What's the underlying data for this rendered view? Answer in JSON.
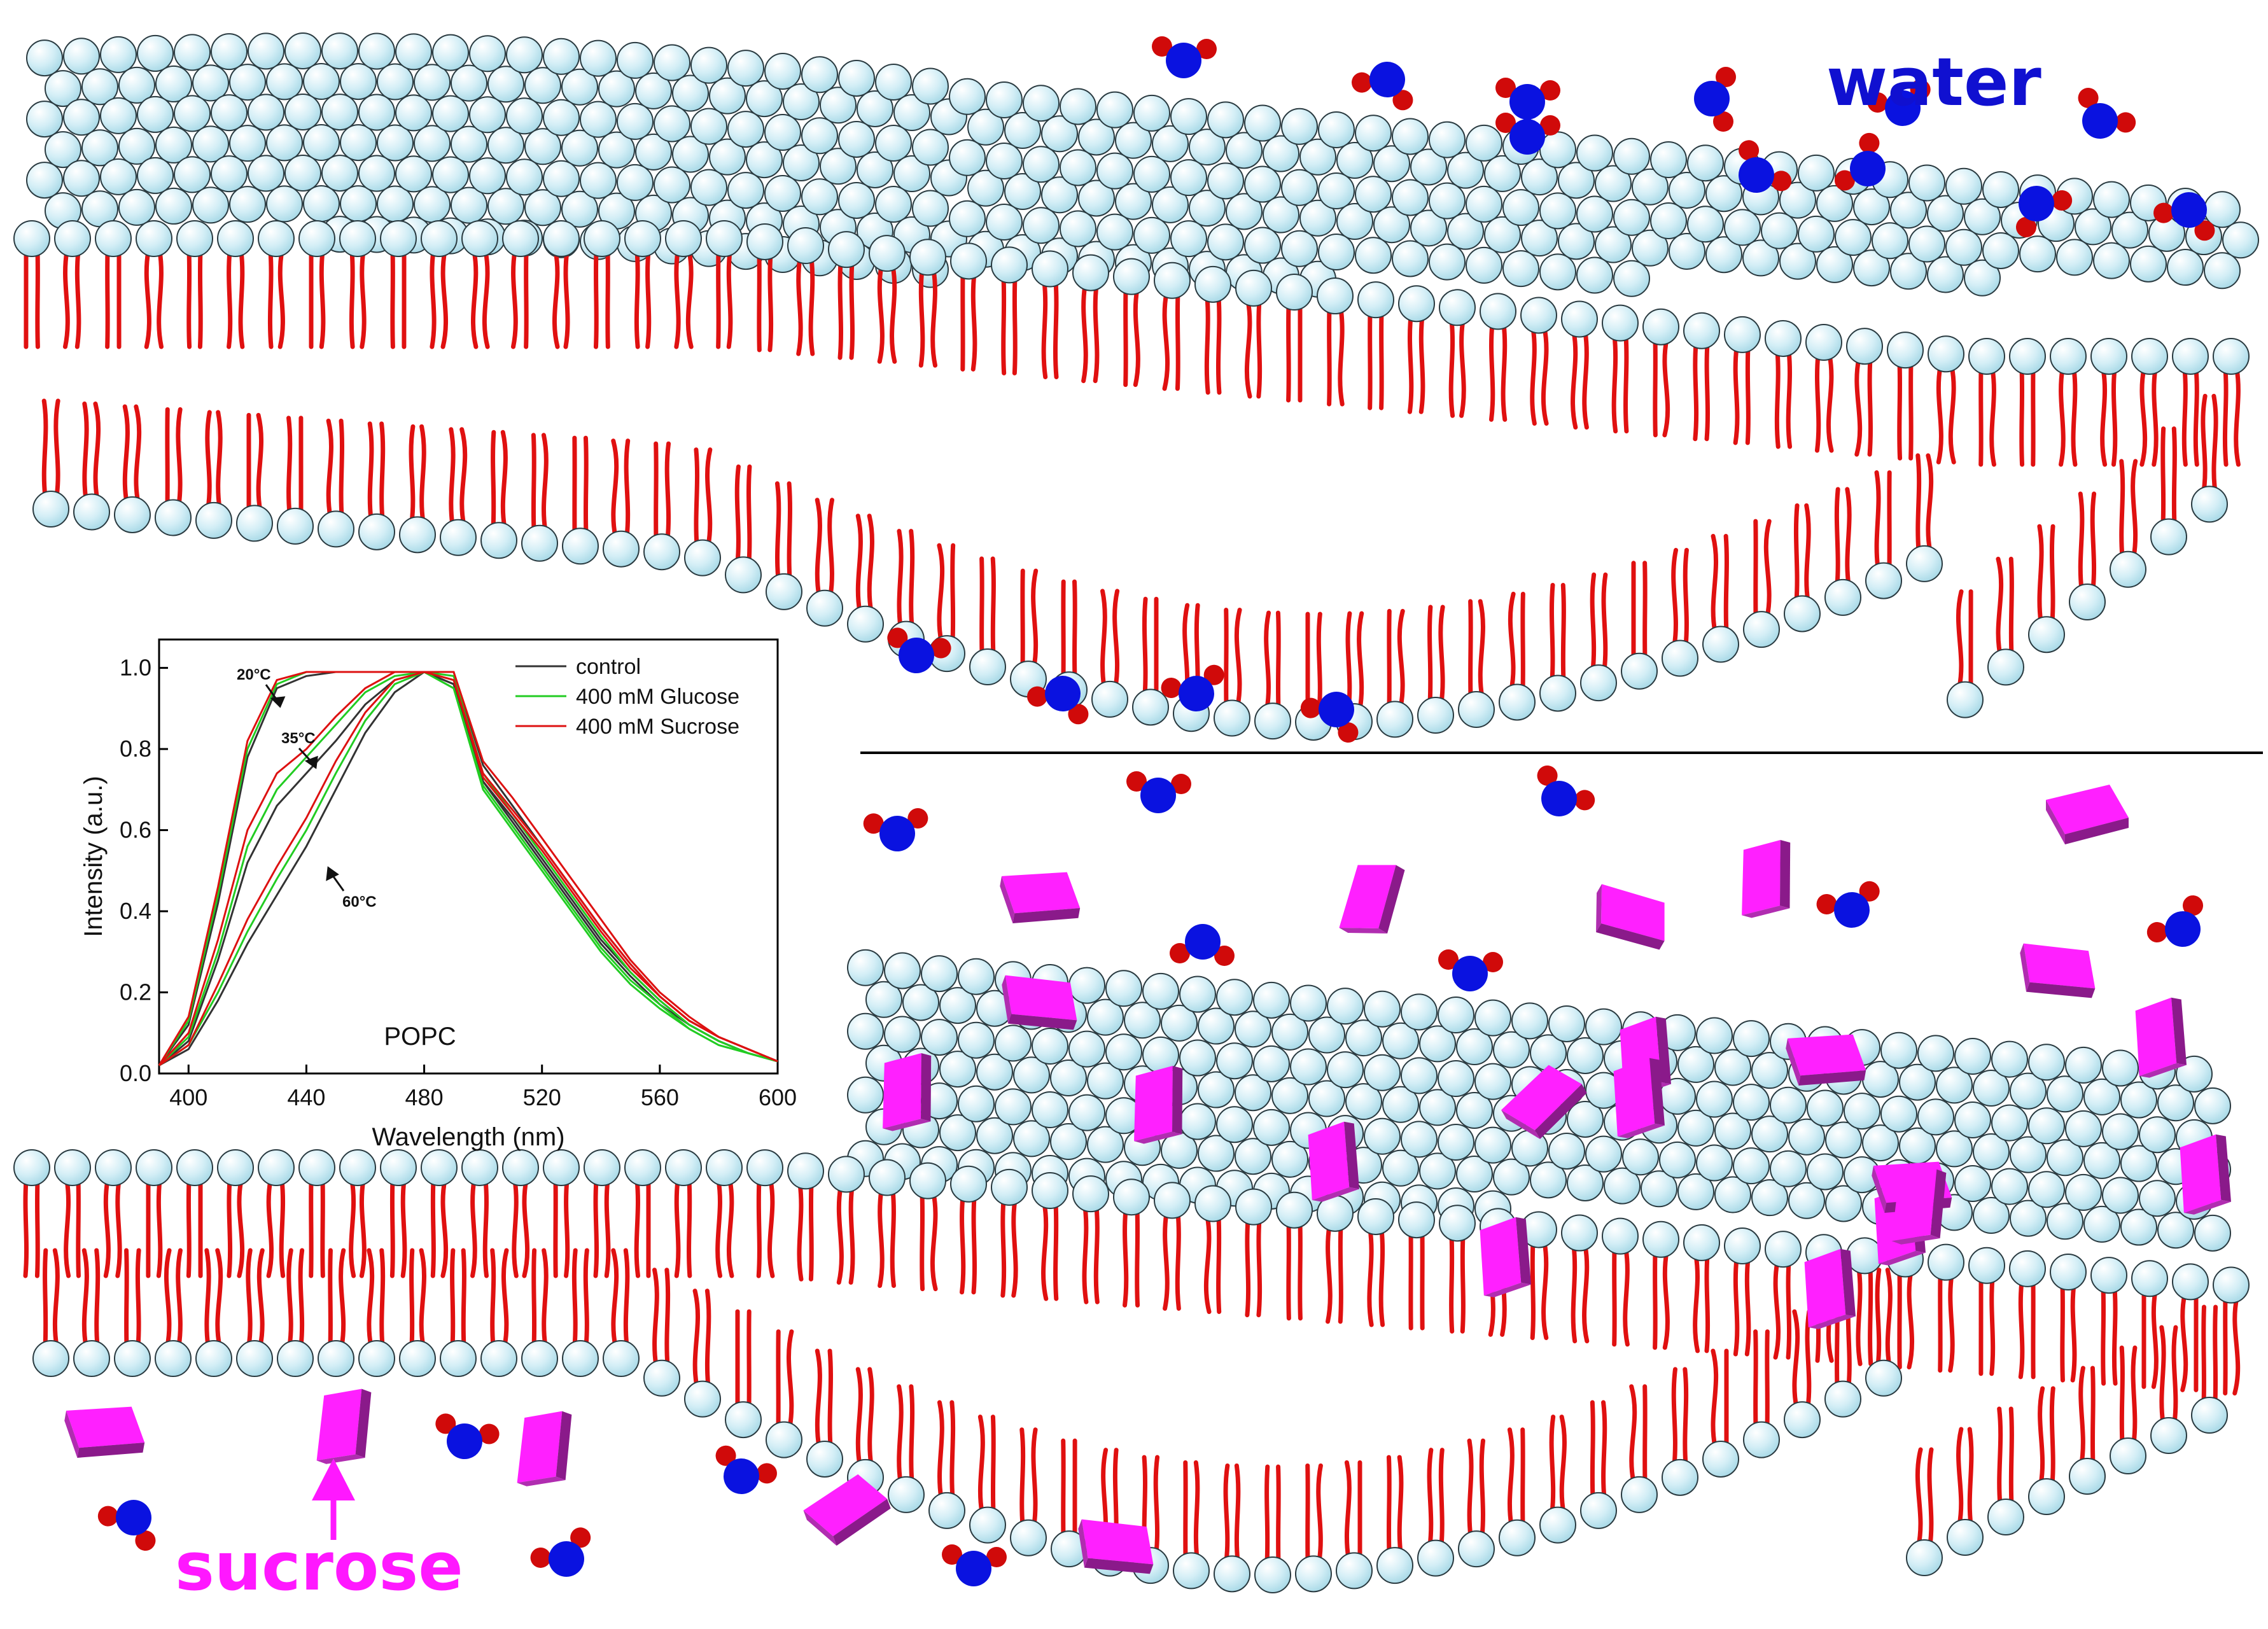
{
  "labels": {
    "water": "water",
    "sucrose": "sucrose"
  },
  "colors": {
    "lipid_head_fill": "#bfe6f0",
    "lipid_head_stroke": "#2a3a40",
    "lipid_tail": "#e01010",
    "water_oxygen": "#0a12e0",
    "water_hydrogen": "#d00a0a",
    "sucrose_top": "#ff20ff",
    "sucrose_side": "#8a1a8a",
    "water_label": "#1010d0",
    "sucrose_label": "#ff18ff",
    "divider": "#000000"
  },
  "icons": {
    "lipid": "phospholipid-icon",
    "water": "water-molecule-icon",
    "sucrose": "sucrose-crystal-icon"
  },
  "chart_data": {
    "type": "line",
    "title": "",
    "xlabel": "Wavelength (nm)",
    "ylabel": "Intensity (a.u.)",
    "xlim": [
      390,
      600
    ],
    "ylim": [
      0.0,
      1.07
    ],
    "xticks": [
      400,
      440,
      480,
      520,
      560,
      600
    ],
    "yticks": [
      "0.0",
      "0.2",
      "0.4",
      "0.6",
      "0.8",
      "1.0"
    ],
    "grid": false,
    "legend_position": "top-right",
    "annotation_text": "POPC",
    "temperature_labels": [
      "20°C",
      "35°C",
      "60°C"
    ],
    "series": [
      {
        "name": "control",
        "color": "#333333",
        "curves": {
          "20°C": {
            "x": [
              390,
              400,
              410,
              420,
              430,
              440,
              450,
              460,
              470,
              480,
              490,
              500,
              510,
              520,
              530,
              540,
              550,
              560,
              570,
              580,
              590,
              600
            ],
            "y": [
              0.02,
              0.12,
              0.42,
              0.78,
              0.95,
              0.98,
              0.99,
              0.99,
              0.99,
              0.99,
              0.96,
              0.72,
              0.62,
              0.52,
              0.42,
              0.32,
              0.24,
              0.17,
              0.12,
              0.08,
              0.05,
              0.03
            ]
          },
          "35°C": {
            "x": [
              390,
              400,
              410,
              420,
              430,
              440,
              450,
              460,
              470,
              480,
              490,
              500,
              510,
              520,
              530,
              540,
              550,
              560,
              570,
              580,
              590,
              600
            ],
            "y": [
              0.02,
              0.08,
              0.28,
              0.52,
              0.66,
              0.74,
              0.82,
              0.91,
              0.97,
              0.99,
              0.96,
              0.72,
              0.63,
              0.53,
              0.43,
              0.33,
              0.25,
              0.18,
              0.12,
              0.08,
              0.05,
              0.03
            ]
          },
          "60°C": {
            "x": [
              390,
              400,
              410,
              420,
              430,
              440,
              450,
              460,
              470,
              480,
              490,
              500,
              510,
              520,
              530,
              540,
              550,
              560,
              570,
              580,
              590,
              600
            ],
            "y": [
              0.02,
              0.06,
              0.18,
              0.32,
              0.44,
              0.56,
              0.7,
              0.84,
              0.94,
              0.99,
              0.99,
              0.76,
              0.66,
              0.56,
              0.46,
              0.36,
              0.27,
              0.19,
              0.13,
              0.09,
              0.06,
              0.03
            ]
          }
        }
      },
      {
        "name": "400 mM Glucose",
        "color": "#22cc22",
        "curves": {
          "20°C": {
            "x": [
              390,
              400,
              410,
              420,
              430,
              440,
              450,
              460,
              470,
              480,
              490,
              500,
              510,
              520,
              530,
              540,
              550,
              560,
              570,
              580,
              590,
              600
            ],
            "y": [
              0.02,
              0.13,
              0.44,
              0.8,
              0.96,
              0.99,
              0.99,
              0.99,
              0.99,
              0.99,
              0.95,
              0.7,
              0.6,
              0.5,
              0.4,
              0.3,
              0.22,
              0.16,
              0.11,
              0.07,
              0.05,
              0.03
            ]
          },
          "35°C": {
            "x": [
              390,
              400,
              410,
              420,
              430,
              440,
              450,
              460,
              470,
              480,
              490,
              500,
              510,
              520,
              530,
              540,
              550,
              560,
              570,
              580,
              590,
              600
            ],
            "y": [
              0.02,
              0.09,
              0.3,
              0.56,
              0.7,
              0.78,
              0.86,
              0.94,
              0.98,
              0.99,
              0.95,
              0.71,
              0.61,
              0.51,
              0.41,
              0.31,
              0.23,
              0.17,
              0.11,
              0.07,
              0.05,
              0.03
            ]
          },
          "60°C": {
            "x": [
              390,
              400,
              410,
              420,
              430,
              440,
              450,
              460,
              470,
              480,
              490,
              500,
              510,
              520,
              530,
              540,
              550,
              560,
              570,
              580,
              590,
              600
            ],
            "y": [
              0.02,
              0.07,
              0.2,
              0.35,
              0.48,
              0.6,
              0.74,
              0.87,
              0.96,
              0.99,
              0.98,
              0.74,
              0.64,
              0.54,
              0.44,
              0.34,
              0.25,
              0.18,
              0.12,
              0.08,
              0.05,
              0.03
            ]
          }
        }
      },
      {
        "name": "400 mM Sucrose",
        "color": "#dd1111",
        "curves": {
          "20°C": {
            "x": [
              390,
              400,
              410,
              420,
              430,
              440,
              450,
              460,
              470,
              480,
              490,
              500,
              510,
              520,
              530,
              540,
              550,
              560,
              570,
              580,
              590,
              600
            ],
            "y": [
              0.02,
              0.14,
              0.46,
              0.82,
              0.97,
              0.99,
              0.99,
              0.99,
              0.99,
              0.99,
              0.97,
              0.73,
              0.64,
              0.55,
              0.45,
              0.35,
              0.26,
              0.19,
              0.13,
              0.09,
              0.06,
              0.03
            ]
          },
          "35°C": {
            "x": [
              390,
              400,
              410,
              420,
              430,
              440,
              450,
              460,
              470,
              480,
              490,
              500,
              510,
              520,
              530,
              540,
              550,
              560,
              570,
              580,
              590,
              600
            ],
            "y": [
              0.02,
              0.1,
              0.33,
              0.6,
              0.74,
              0.8,
              0.88,
              0.95,
              0.99,
              0.99,
              0.97,
              0.74,
              0.65,
              0.56,
              0.46,
              0.36,
              0.27,
              0.19,
              0.13,
              0.09,
              0.06,
              0.03
            ]
          },
          "60°C": {
            "x": [
              390,
              400,
              410,
              420,
              430,
              440,
              450,
              460,
              470,
              480,
              490,
              500,
              510,
              520,
              530,
              540,
              550,
              560,
              570,
              580,
              590,
              600
            ],
            "y": [
              0.02,
              0.07,
              0.22,
              0.38,
              0.51,
              0.63,
              0.77,
              0.89,
              0.97,
              0.99,
              0.99,
              0.77,
              0.68,
              0.58,
              0.48,
              0.38,
              0.28,
              0.2,
              0.14,
              0.09,
              0.06,
              0.03
            ]
          }
        }
      }
    ]
  }
}
